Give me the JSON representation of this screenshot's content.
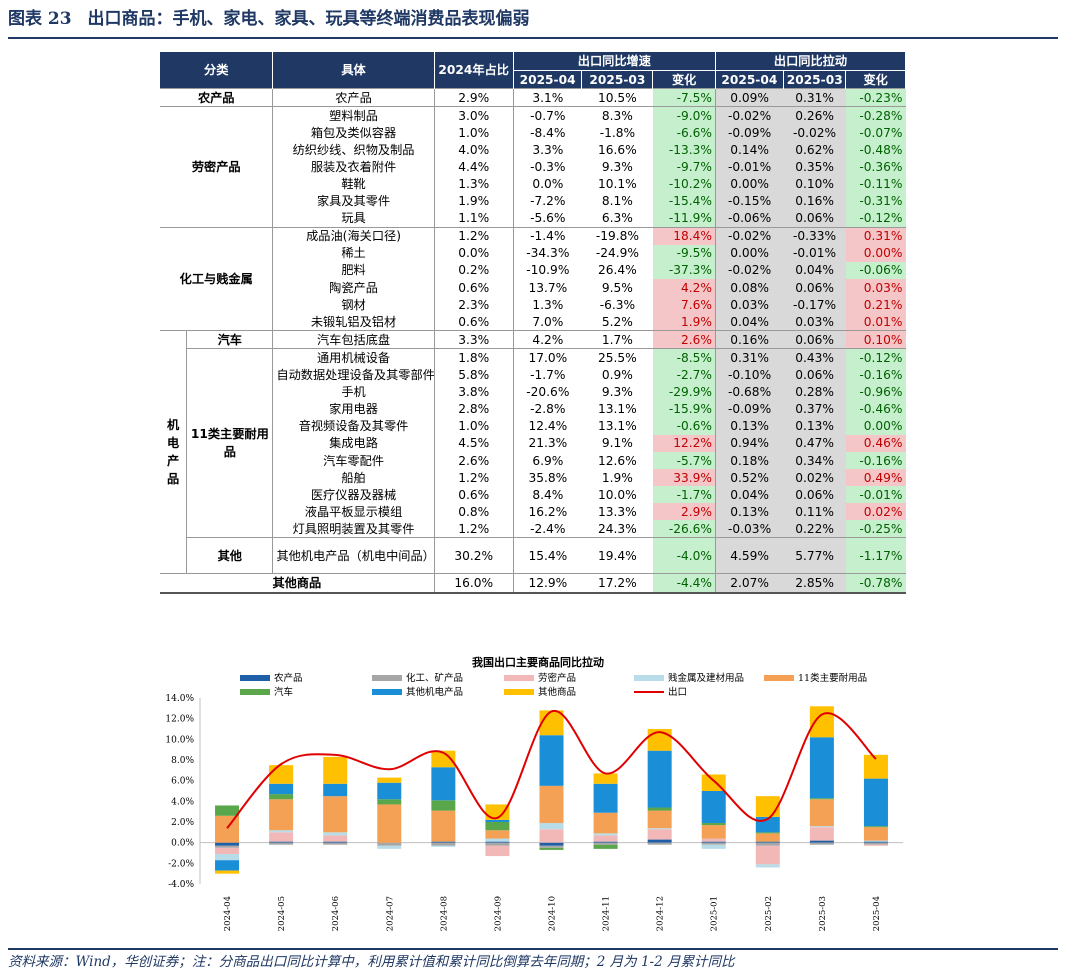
{
  "title": {
    "label": "图表 23",
    "text": "出口商品：手机、家电、家具、玩具等终端消费品表现偏弱"
  },
  "table": {
    "hdr_class": "分类",
    "hdr_item": "具体",
    "hdr_share": "2024年占比",
    "hdr_growth": "出口同比增速",
    "hdr_pull": "出口同比拉动",
    "hdr_m1": "2025-04",
    "hdr_m2": "2025-03",
    "hdr_chg": "变化",
    "cat_agri": "农产品",
    "cat_labor": "劳密产品",
    "cat_chem": "化工与贱金属",
    "cat_mech": "机电产品",
    "sub_auto": "汽车",
    "sub_durable": "11类主要耐用品",
    "sub_other": "其他",
    "cat_othergoods": "其他商品",
    "rows": [
      {
        "name": "农产品",
        "share": "2.9%",
        "g1": "3.1%",
        "g2": "10.5%",
        "gc": "-7.5%",
        "p1": "0.09%",
        "p2": "0.31%",
        "pc": "-0.23%"
      },
      {
        "name": "塑料制品",
        "share": "3.0%",
        "g1": "-0.7%",
        "g2": "8.3%",
        "gc": "-9.0%",
        "p1": "-0.02%",
        "p2": "0.26%",
        "pc": "-0.28%"
      },
      {
        "name": "箱包及类似容器",
        "share": "1.0%",
        "g1": "-8.4%",
        "g2": "-1.8%",
        "gc": "-6.6%",
        "p1": "-0.09%",
        "p2": "-0.02%",
        "pc": "-0.07%"
      },
      {
        "name": "纺织纱线、织物及制品",
        "share": "4.0%",
        "g1": "3.3%",
        "g2": "16.6%",
        "gc": "-13.3%",
        "p1": "0.14%",
        "p2": "0.62%",
        "pc": "-0.48%"
      },
      {
        "name": "服装及衣着附件",
        "share": "4.4%",
        "g1": "-0.3%",
        "g2": "9.3%",
        "gc": "-9.7%",
        "p1": "-0.01%",
        "p2": "0.35%",
        "pc": "-0.36%"
      },
      {
        "name": "鞋靴",
        "share": "1.3%",
        "g1": "0.0%",
        "g2": "10.1%",
        "gc": "-10.2%",
        "p1": "0.00%",
        "p2": "0.10%",
        "pc": "-0.11%"
      },
      {
        "name": "家具及其零件",
        "share": "1.9%",
        "g1": "-7.2%",
        "g2": "8.1%",
        "gc": "-15.4%",
        "p1": "-0.15%",
        "p2": "0.16%",
        "pc": "-0.31%"
      },
      {
        "name": "玩具",
        "share": "1.1%",
        "g1": "-5.6%",
        "g2": "6.3%",
        "gc": "-11.9%",
        "p1": "-0.06%",
        "p2": "0.06%",
        "pc": "-0.12%"
      },
      {
        "name": "成品油(海关口径)",
        "share": "1.2%",
        "g1": "-1.4%",
        "g2": "-19.8%",
        "gc": "18.4%",
        "p1": "-0.02%",
        "p2": "-0.33%",
        "pc": "0.31%"
      },
      {
        "name": "稀土",
        "share": "0.0%",
        "g1": "-34.3%",
        "g2": "-24.9%",
        "gc": "-9.5%",
        "p1": "0.00%",
        "p2": "-0.01%",
        "pc": "0.00%"
      },
      {
        "name": "肥料",
        "share": "0.2%",
        "g1": "-10.9%",
        "g2": "26.4%",
        "gc": "-37.3%",
        "p1": "-0.02%",
        "p2": "0.04%",
        "pc": "-0.06%"
      },
      {
        "name": "陶瓷产品",
        "share": "0.6%",
        "g1": "13.7%",
        "g2": "9.5%",
        "gc": "4.2%",
        "p1": "0.08%",
        "p2": "0.06%",
        "pc": "0.03%"
      },
      {
        "name": "钢材",
        "share": "2.3%",
        "g1": "1.3%",
        "g2": "-6.3%",
        "gc": "7.6%",
        "p1": "0.03%",
        "p2": "-0.17%",
        "pc": "0.21%"
      },
      {
        "name": "未锻轧铝及铝材",
        "share": "0.6%",
        "g1": "7.0%",
        "g2": "5.2%",
        "gc": "1.9%",
        "p1": "0.04%",
        "p2": "0.03%",
        "pc": "0.01%"
      },
      {
        "name": "汽车包括底盘",
        "share": "3.3%",
        "g1": "4.2%",
        "g2": "1.7%",
        "gc": "2.6%",
        "p1": "0.16%",
        "p2": "0.06%",
        "pc": "0.10%"
      },
      {
        "name": "通用机械设备",
        "share": "1.8%",
        "g1": "17.0%",
        "g2": "25.5%",
        "gc": "-8.5%",
        "p1": "0.31%",
        "p2": "0.43%",
        "pc": "-0.12%"
      },
      {
        "name": "自动数据处理设备及其零部件",
        "share": "5.8%",
        "g1": "-1.7%",
        "g2": "0.9%",
        "gc": "-2.7%",
        "p1": "-0.10%",
        "p2": "0.06%",
        "pc": "-0.16%"
      },
      {
        "name": "手机",
        "share": "3.8%",
        "g1": "-20.6%",
        "g2": "9.3%",
        "gc": "-29.9%",
        "p1": "-0.68%",
        "p2": "0.28%",
        "pc": "-0.96%"
      },
      {
        "name": "家用电器",
        "share": "2.8%",
        "g1": "-2.8%",
        "g2": "13.1%",
        "gc": "-15.9%",
        "p1": "-0.09%",
        "p2": "0.37%",
        "pc": "-0.46%"
      },
      {
        "name": "音视频设备及其零件",
        "share": "1.0%",
        "g1": "12.4%",
        "g2": "13.1%",
        "gc": "-0.6%",
        "p1": "0.13%",
        "p2": "0.13%",
        "pc": "0.00%"
      },
      {
        "name": "集成电路",
        "share": "4.5%",
        "g1": "21.3%",
        "g2": "9.1%",
        "gc": "12.2%",
        "p1": "0.94%",
        "p2": "0.47%",
        "pc": "0.46%"
      },
      {
        "name": "汽车零配件",
        "share": "2.6%",
        "g1": "6.9%",
        "g2": "12.6%",
        "gc": "-5.7%",
        "p1": "0.18%",
        "p2": "0.34%",
        "pc": "-0.16%"
      },
      {
        "name": "船舶",
        "share": "1.2%",
        "g1": "35.8%",
        "g2": "1.9%",
        "gc": "33.9%",
        "p1": "0.52%",
        "p2": "0.02%",
        "pc": "0.49%"
      },
      {
        "name": "医疗仪器及器械",
        "share": "0.6%",
        "g1": "8.4%",
        "g2": "10.0%",
        "gc": "-1.7%",
        "p1": "0.04%",
        "p2": "0.06%",
        "pc": "-0.01%"
      },
      {
        "name": "液晶平板显示模组",
        "share": "0.8%",
        "g1": "16.2%",
        "g2": "13.3%",
        "gc": "2.9%",
        "p1": "0.13%",
        "p2": "0.11%",
        "pc": "0.02%"
      },
      {
        "name": "灯具照明装置及其零件",
        "share": "1.2%",
        "g1": "-2.4%",
        "g2": "24.3%",
        "gc": "-26.6%",
        "p1": "-0.03%",
        "p2": "0.22%",
        "pc": "-0.25%"
      },
      {
        "name": "其他机电产品（机电中间品）",
        "share": "30.2%",
        "g1": "15.4%",
        "g2": "19.4%",
        "gc": "-4.0%",
        "p1": "4.59%",
        "p2": "5.77%",
        "pc": "-1.17%"
      },
      {
        "name": "其他商品",
        "share": "16.0%",
        "g1": "12.9%",
        "g2": "17.2%",
        "gc": "-4.4%",
        "p1": "2.07%",
        "p2": "2.85%",
        "pc": "-0.78%"
      }
    ]
  },
  "chart_data": {
    "type": "bar",
    "title": "我国出口主要商品同比拉动",
    "stacked": true,
    "ylim": [
      -4,
      14
    ],
    "yticks": [
      "-4.0%",
      "-2.0%",
      "0.0%",
      "2.0%",
      "4.0%",
      "6.0%",
      "8.0%",
      "10.0%",
      "12.0%",
      "14.0%"
    ],
    "categories": [
      "2024-04",
      "2024-05",
      "2024-06",
      "2024-07",
      "2024-08",
      "2024-09",
      "2024-10",
      "2024-11",
      "2024-12",
      "2025-01",
      "2025-02",
      "2025-03",
      "2025-04"
    ],
    "colors": {
      "agri": "#1f5fa8",
      "chem": "#a6a6a6",
      "labor": "#f2b8b8",
      "metal": "#b8dde8",
      "durable": "#f4a055",
      "auto": "#5aa64a",
      "mech": "#1a8ed6",
      "other": "#ffc000",
      "line": "#e00000"
    },
    "series": [
      {
        "key": "agri",
        "name": "农产品",
        "values": [
          -0.3,
          0.1,
          0.1,
          0.0,
          0.1,
          0.1,
          -0.3,
          0.1,
          0.3,
          0.1,
          0.1,
          0.2,
          0.1
        ]
      },
      {
        "key": "chem",
        "name": "化工、矿产品",
        "values": [
          -0.2,
          -0.2,
          -0.2,
          -0.3,
          -0.3,
          -0.3,
          -0.2,
          -0.2,
          -0.2,
          -0.2,
          -0.3,
          -0.2,
          -0.2
        ]
      },
      {
        "key": "labor",
        "name": "劳密产品",
        "values": [
          -0.6,
          0.9,
          0.6,
          0.0,
          0.0,
          -1.0,
          1.3,
          0.6,
          1.0,
          0.3,
          -1.8,
          1.3,
          -0.1
        ]
      },
      {
        "key": "metal",
        "name": "贱金属及建材用品",
        "values": [
          -0.6,
          0.2,
          0.3,
          -0.3,
          -0.1,
          0.3,
          0.6,
          0.2,
          0.1,
          -0.4,
          -0.3,
          0.1,
          0.1
        ]
      },
      {
        "key": "durable",
        "name": "11类主要耐用品",
        "values": [
          2.6,
          3.0,
          3.5,
          3.7,
          3.0,
          0.8,
          3.6,
          2.0,
          1.7,
          1.3,
          0.8,
          2.6,
          1.3
        ]
      },
      {
        "key": "auto",
        "name": "汽车",
        "values": [
          1.0,
          0.5,
          0.0,
          0.5,
          1.0,
          0.8,
          -0.2,
          -0.4,
          0.3,
          0.2,
          0.1,
          0.1,
          0.1
        ]
      },
      {
        "key": "mech",
        "name": "其他机电产品",
        "values": [
          -1.0,
          1.0,
          1.2,
          1.6,
          3.2,
          0.2,
          4.9,
          2.8,
          5.5,
          3.1,
          1.5,
          5.9,
          4.6
        ]
      },
      {
        "key": "other",
        "name": "其他商品",
        "values": [
          -0.3,
          1.8,
          2.6,
          0.5,
          1.6,
          1.5,
          2.4,
          1.0,
          2.1,
          1.6,
          2.0,
          3.0,
          2.3
        ]
      }
    ],
    "line": {
      "name": "出口",
      "values": [
        1.4,
        7.6,
        8.5,
        7.1,
        8.7,
        2.4,
        12.7,
        6.7,
        10.7,
        6.0,
        2.3,
        12.4,
        8.1
      ]
    }
  },
  "source": "资料来源：Wind，华创证券；注：分商品出口同比计算中，利用累计值和累计同比倒算去年同期；2 月为 1-2 月累计同比"
}
